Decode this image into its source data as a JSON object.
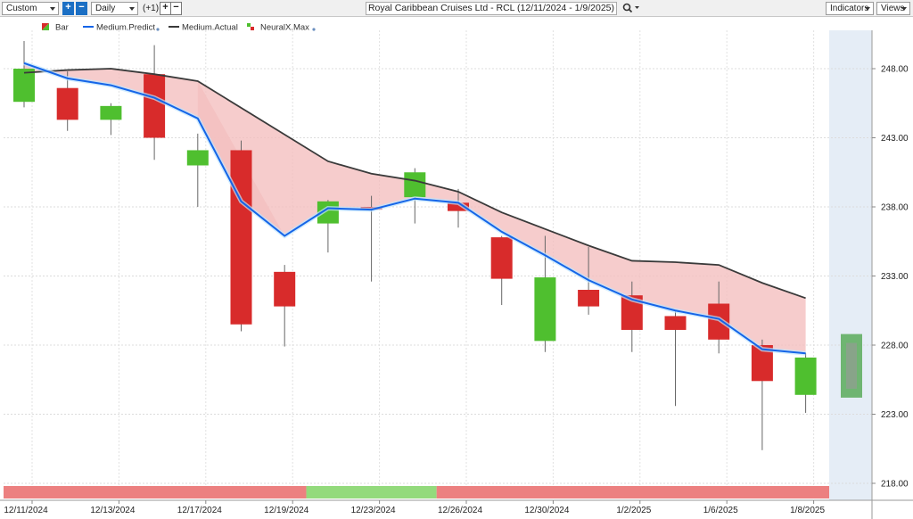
{
  "toolbar": {
    "range_select": "Custom",
    "plus_label": "+",
    "minus_label": "−",
    "interval_select": "Daily",
    "offset_label": "(+1)",
    "plus2_label": "+",
    "minus2_label": "−",
    "title": "Royal Caribbean Cruises Ltd - RCL (12/11/2024 - 1/9/2025)",
    "search_icon": "search-icon",
    "indicators_label": "Indicators",
    "views_label": "Views"
  },
  "colors": {
    "up": "#4fbf2f",
    "down": "#d82b2b",
    "predict": "#1565e8",
    "actual": "#3a3a3a",
    "fill": "#f4bfbf",
    "strip_red": "#ec8080",
    "strip_green": "#93da7c",
    "forecast_bg": "#e5edf6",
    "forecast_bar": "#5aaa5a"
  },
  "chart_data": {
    "type": "candlestick",
    "legend": [
      {
        "label": "Bar",
        "icon": "bar-icon"
      },
      {
        "label": "Medium.Predict",
        "icon": "line-icon"
      },
      {
        "label": "Medium.Actual",
        "icon": "line-icon"
      },
      {
        "label": "NeuralX.Max",
        "icon": "neural-icon"
      }
    ],
    "ylim": [
      218,
      251.5
    ],
    "y_ticks": [
      "218.00",
      "223.00",
      "228.00",
      "233.00",
      "238.00",
      "243.00",
      "248.00"
    ],
    "x_labels": [
      "12/11/2024",
      "12/13/2024",
      "12/17/2024",
      "12/19/2024",
      "12/23/2024",
      "12/26/2024",
      "12/30/2024",
      "1/2/2025",
      "1/6/2025",
      "1/8/2025"
    ],
    "candles": [
      {
        "open": 245.6,
        "high": 250.0,
        "low": 245.2,
        "close": 248.0
      },
      {
        "open": 246.6,
        "high": 247.8,
        "low": 243.5,
        "close": 244.3
      },
      {
        "open": 244.3,
        "high": 245.5,
        "low": 243.2,
        "close": 245.3
      },
      {
        "open": 247.6,
        "high": 249.7,
        "low": 241.4,
        "close": 243.0
      },
      {
        "open": 241.0,
        "high": 243.3,
        "low": 238.0,
        "close": 242.1
      },
      {
        "open": 242.1,
        "high": 242.8,
        "low": 229.0,
        "close": 229.5
      },
      {
        "open": 233.3,
        "high": 233.8,
        "low": 227.9,
        "close": 230.8
      },
      {
        "open": 236.8,
        "high": 238.5,
        "low": 234.7,
        "close": 238.4
      },
      {
        "open": 238.0,
        "high": 238.8,
        "low": 232.6,
        "close": 237.8
      },
      {
        "open": 238.7,
        "high": 240.8,
        "low": 236.8,
        "close": 240.5
      },
      {
        "open": 238.3,
        "high": 239.3,
        "low": 236.5,
        "close": 237.7
      },
      {
        "open": 235.8,
        "high": 235.9,
        "low": 230.9,
        "close": 232.8
      },
      {
        "open": 228.3,
        "high": 235.9,
        "low": 227.5,
        "close": 232.9
      },
      {
        "open": 232.0,
        "high": 235.1,
        "low": 230.2,
        "close": 230.8
      },
      {
        "open": 231.6,
        "high": 232.6,
        "low": 227.5,
        "close": 229.1
      },
      {
        "open": 230.1,
        "high": 230.5,
        "low": 223.6,
        "close": 229.1
      },
      {
        "open": 231.0,
        "high": 232.6,
        "low": 227.4,
        "close": 228.4
      },
      {
        "open": 228.0,
        "high": 228.4,
        "low": 220.4,
        "close": 225.4
      },
      {
        "open": 224.4,
        "high": 227.4,
        "low": 223.1,
        "close": 227.1
      }
    ],
    "series": [
      {
        "name": "Medium.Predict",
        "values": [
          248.4,
          247.3,
          246.8,
          245.9,
          244.4,
          238.4,
          235.9,
          237.9,
          237.8,
          238.6,
          238.3,
          236.2,
          234.5,
          232.7,
          231.3,
          230.5,
          229.9,
          227.7,
          227.4
        ]
      },
      {
        "name": "Medium.Actual",
        "values": [
          247.7,
          247.9,
          248.0,
          247.6,
          247.1,
          null,
          null,
          241.3,
          240.4,
          239.9,
          239.1,
          237.6,
          236.4,
          235.2,
          234.1,
          234.0,
          233.8,
          232.5,
          231.4
        ]
      }
    ],
    "forecast_bar": {
      "high": 228.8,
      "low": 224.2
    },
    "signal_strip": [
      {
        "from": 0,
        "to": 6,
        "signal": "red"
      },
      {
        "from": 7,
        "to": 9,
        "signal": "green"
      },
      {
        "from": 10,
        "to": 18,
        "signal": "red"
      }
    ]
  }
}
